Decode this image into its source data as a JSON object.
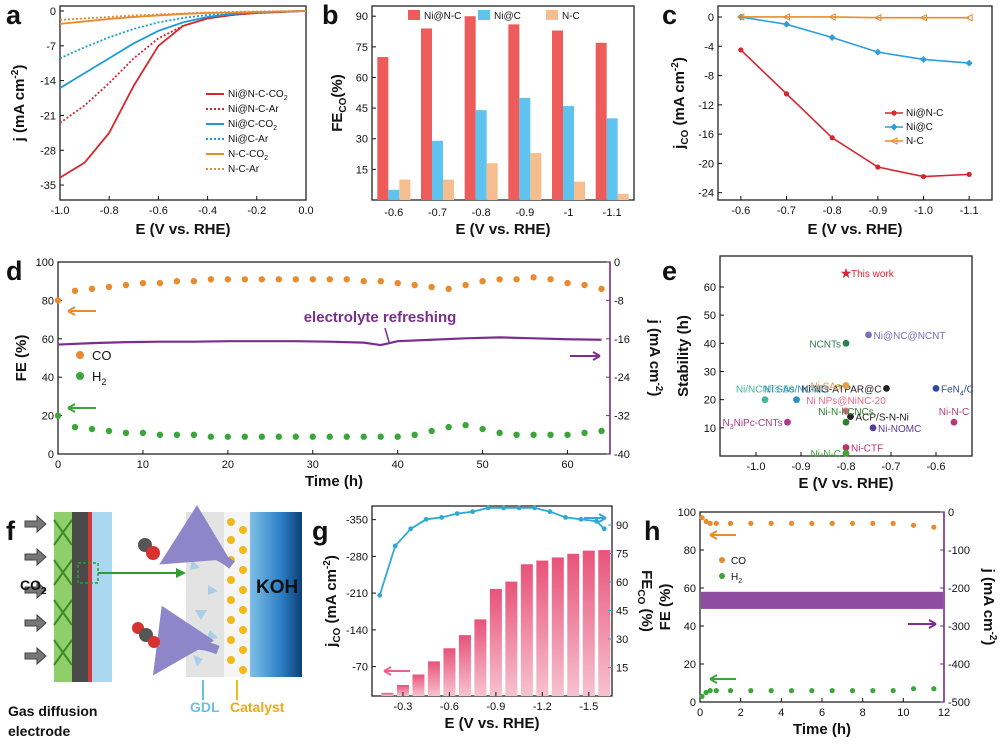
{
  "colors": {
    "red": "#d7262e",
    "blue": "#1e9bd7",
    "orange": "#e98b2a",
    "purple": "#7a2e8f",
    "pink": "#e8638a",
    "cyan": "#2fa8d3",
    "green": "#3aa63a",
    "darkorange": "#e88a2e"
  },
  "panels": {
    "a": "a",
    "b": "b",
    "c": "c",
    "d": "d",
    "e": "e",
    "f": "f",
    "g": "g",
    "h": "h"
  },
  "chart_data": [
    {
      "id": "a",
      "type": "line",
      "xlabel": "E (V vs. RHE)",
      "ylabel": "j (mA cm",
      "ylabel_sup": "-2",
      "ylabel_end": ")",
      "xlim": [
        -1.0,
        0.0
      ],
      "ylim": [
        -38,
        1
      ],
      "xticks": [
        "-1.0",
        "-0.8",
        "-0.6",
        "-0.4",
        "-0.2",
        "0.0"
      ],
      "xtick_values": [
        -1.0,
        -0.8,
        -0.6,
        -0.4,
        -0.2,
        0.0
      ],
      "yticks": [
        "0",
        "-7",
        "-14",
        "-21",
        "-28",
        "-35"
      ],
      "ytick_values": [
        0,
        -7,
        -14,
        -21,
        -28,
        -35
      ],
      "series": [
        {
          "name": "Ni@N-C-CO",
          "sub": "2",
          "color": "#d7262e",
          "dash": false,
          "x": [
            -1.0,
            -0.9,
            -0.8,
            -0.7,
            -0.6,
            -0.5,
            -0.4,
            -0.3,
            -0.2,
            -0.1,
            0.0
          ],
          "y": [
            -33.5,
            -30.5,
            -24.5,
            -15,
            -7,
            -3,
            -1.5,
            -0.8,
            -0.4,
            -0.2,
            0
          ]
        },
        {
          "name": "Ni@N-C-Ar",
          "color": "#d7262e",
          "dash": true,
          "x": [
            -1.0,
            -0.9,
            -0.8,
            -0.7,
            -0.6,
            -0.5,
            -0.4,
            -0.3,
            -0.2,
            -0.1,
            0.0
          ],
          "y": [
            -22.5,
            -19,
            -14.5,
            -9.5,
            -5.5,
            -3,
            -1.5,
            -0.8,
            -0.4,
            -0.2,
            0
          ]
        },
        {
          "name": "Ni@C-CO",
          "sub": "2",
          "color": "#1e9bd7",
          "dash": false,
          "x": [
            -1.0,
            -0.9,
            -0.8,
            -0.7,
            -0.6,
            -0.5,
            -0.4,
            -0.3,
            -0.2,
            -0.1,
            0.0
          ],
          "y": [
            -15.5,
            -12.5,
            -9.5,
            -6.5,
            -4,
            -2.3,
            -1.2,
            -0.6,
            -0.3,
            -0.1,
            0
          ]
        },
        {
          "name": "Ni@C-Ar",
          "color": "#1e9bd7",
          "dash": true,
          "x": [
            -1.0,
            -0.9,
            -0.8,
            -0.7,
            -0.6,
            -0.5,
            -0.4,
            -0.3,
            -0.2,
            -0.1,
            0.0
          ],
          "y": [
            -9.5,
            -7.3,
            -5.3,
            -3.6,
            -2.3,
            -1.4,
            -0.8,
            -0.4,
            -0.2,
            -0.1,
            0
          ]
        },
        {
          "name": "N-C-CO",
          "sub": "2",
          "color": "#e98b2a",
          "dash": false,
          "x": [
            -1.0,
            -0.9,
            -0.8,
            -0.7,
            -0.6,
            -0.5,
            -0.4,
            -0.3,
            -0.2,
            -0.1,
            0.0
          ],
          "y": [
            -2.6,
            -2.1,
            -1.6,
            -1.2,
            -0.9,
            -0.6,
            -0.4,
            -0.3,
            -0.2,
            -0.1,
            0
          ]
        },
        {
          "name": "N-C-Ar",
          "color": "#e98b2a",
          "dash": true,
          "x": [
            -1.0,
            -0.9,
            -0.8,
            -0.7,
            -0.6,
            -0.5,
            -0.4,
            -0.3,
            -0.2,
            -0.1,
            0.0
          ],
          "y": [
            -1.8,
            -1.5,
            -1.2,
            -0.9,
            -0.7,
            -0.5,
            -0.3,
            -0.2,
            -0.1,
            -0.05,
            0
          ]
        }
      ]
    },
    {
      "id": "b",
      "type": "bar",
      "xlabel": "E (V vs. RHE)",
      "ylabel": "FE",
      "ylabel_sub": "CO",
      "ylabel_end": "(%)",
      "categories": [
        "-0.6",
        "-0.7",
        "-0.8",
        "-0.9",
        "-1",
        "-1.1"
      ],
      "ylim": [
        0,
        95
      ],
      "yticks": [
        "15",
        "30",
        "45",
        "60",
        "75",
        "90"
      ],
      "ytick_values": [
        15,
        30,
        45,
        60,
        75,
        90
      ],
      "series": [
        {
          "name": "Ni@N-C",
          "color": "#ee5b5b",
          "values": [
            70,
            84,
            90,
            86,
            83,
            77
          ]
        },
        {
          "name": "Ni@C",
          "color": "#5fc3ef",
          "values": [
            5,
            29,
            44,
            50,
            46,
            40
          ]
        },
        {
          "name": "N-C",
          "color": "#f6be8f",
          "values": [
            10,
            10,
            18,
            23,
            9,
            3
          ]
        }
      ]
    },
    {
      "id": "c",
      "type": "line",
      "xlabel": "E (V vs. RHE)",
      "ylabel": "j",
      "ylabel_sub": "CO",
      "ylabel_end": " (mA cm",
      "ylabel_sup": "-2",
      "ylabel_end2": ")",
      "xlim": [
        -0.55,
        -1.15
      ],
      "ylim": [
        -25,
        1.5
      ],
      "xticks": [
        "-0.6",
        "-0.7",
        "-0.8",
        "-0.9",
        "-1.0",
        "-1.1"
      ],
      "xtick_values": [
        -0.6,
        -0.7,
        -0.8,
        -0.9,
        -1.0,
        -1.1
      ],
      "yticks": [
        "0",
        "-4",
        "-8",
        "-12",
        "-16",
        "-20",
        "-24"
      ],
      "ytick_values": [
        0,
        -4,
        -8,
        -12,
        -16,
        -20,
        -24
      ],
      "series": [
        {
          "name": "Ni@N-C",
          "color": "#d7262e",
          "marker": "star",
          "x": [
            -0.6,
            -0.7,
            -0.8,
            -0.9,
            -1.0,
            -1.1
          ],
          "y": [
            -4.5,
            -10.5,
            -16.5,
            -20.5,
            -21.8,
            -21.5
          ]
        },
        {
          "name": "Ni@C",
          "color": "#2e9fd8",
          "marker": "diamond",
          "x": [
            -0.6,
            -0.7,
            -0.8,
            -0.9,
            -1.0,
            -1.1
          ],
          "y": [
            0,
            -1,
            -2.8,
            -4.8,
            -5.8,
            -6.3
          ]
        },
        {
          "name": "N-C",
          "color": "#e98b2a",
          "marker": "tri",
          "x": [
            -0.6,
            -0.7,
            -0.8,
            -0.9,
            -1.0,
            -1.1
          ],
          "y": [
            0,
            0,
            0,
            -0.1,
            -0.1,
            -0.1
          ]
        }
      ]
    },
    {
      "id": "d",
      "type": "scatter",
      "xlabel": "Time (h)",
      "ylabel": "FE (%)",
      "y2label": "j (mA cm",
      "y2label_sup": "-2",
      "y2label_end": ")",
      "xlim": [
        0,
        65
      ],
      "ylim": [
        0,
        100
      ],
      "y2lim": [
        -40,
        0
      ],
      "xticks": [
        "0",
        "10",
        "20",
        "30",
        "40",
        "50",
        "60"
      ],
      "xtick_values": [
        0,
        10,
        20,
        30,
        40,
        50,
        60
      ],
      "yticks": [
        "0",
        "20",
        "40",
        "60",
        "80",
        "100"
      ],
      "ytick_values": [
        0,
        20,
        40,
        60,
        80,
        100
      ],
      "y2ticks": [
        "0",
        "-8",
        "-16",
        "-24",
        "-32",
        "-40"
      ],
      "y2tick_values": [
        0,
        -8,
        -16,
        -24,
        -32,
        -40
      ],
      "annotation": "electrolyte refreshing",
      "series": [
        {
          "name": "CO",
          "color": "#e88a2e",
          "x": [
            0,
            2,
            4,
            6,
            8,
            10,
            12,
            14,
            16,
            18,
            20,
            22,
            24,
            26,
            28,
            30,
            32,
            34,
            36,
            38,
            40,
            42,
            44,
            46,
            48,
            50,
            52,
            54,
            56,
            58,
            60,
            62,
            64
          ],
          "y": [
            80,
            85,
            86,
            87,
            88,
            89,
            89,
            90,
            90,
            91,
            91,
            91,
            91,
            91,
            91,
            91,
            91,
            91,
            90,
            90,
            89,
            88,
            87,
            86,
            88,
            90,
            91,
            91,
            92,
            91,
            89,
            88,
            86
          ]
        },
        {
          "name": "H",
          "sub": "2",
          "color": "#3aa63a",
          "x": [
            0,
            2,
            4,
            6,
            8,
            10,
            12,
            14,
            16,
            18,
            20,
            22,
            24,
            26,
            28,
            30,
            32,
            34,
            36,
            38,
            40,
            42,
            44,
            46,
            48,
            50,
            52,
            54,
            56,
            58,
            60,
            62,
            64
          ],
          "y": [
            20,
            14,
            13,
            12,
            11,
            11,
            10,
            10,
            10,
            9,
            9,
            9,
            9,
            9,
            9,
            9,
            9,
            9,
            9,
            9,
            9,
            10,
            12,
            14,
            15,
            13,
            11,
            10,
            10,
            10,
            10,
            11,
            12
          ]
        },
        {
          "name": "j",
          "color": "#7a2e8f",
          "axis": "y2",
          "x": [
            0,
            4,
            8,
            12,
            16,
            20,
            24,
            28,
            32,
            36,
            38,
            40,
            44,
            48,
            52,
            56,
            60,
            64
          ],
          "y": [
            -17.2,
            -16.9,
            -16.7,
            -16.6,
            -16.6,
            -16.5,
            -16.5,
            -16.5,
            -16.6,
            -16.8,
            -17.3,
            -16.5,
            -16.2,
            -15.9,
            -15.7,
            -15.9,
            -16.1,
            -16.2
          ]
        }
      ]
    },
    {
      "id": "e",
      "type": "scatter",
      "xlabel": "E (V vs. RHE)",
      "ylabel": "Stability (h)",
      "xlim": [
        -1.08,
        -0.52
      ],
      "ylim": [
        0,
        71
      ],
      "xticks": [
        "-1.0",
        "-0.9",
        "-0.8",
        "-0.7",
        "-0.6"
      ],
      "xtick_values": [
        -1.0,
        -0.9,
        -0.8,
        -0.7,
        -0.6
      ],
      "yticks": [
        "10",
        "20",
        "30",
        "40",
        "50",
        "60"
      ],
      "ytick_values": [
        10,
        20,
        30,
        40,
        50,
        60
      ],
      "points": [
        {
          "label": "This work",
          "x": -0.8,
          "y": 65,
          "color": "#d7262e",
          "star": true,
          "anchor": "start"
        },
        {
          "label": "Ni@NC@NCNT",
          "x": -0.75,
          "y": 43,
          "color": "#7a6fb8",
          "anchor": "start"
        },
        {
          "label": "NCNTs",
          "x": -0.8,
          "y": 40,
          "color": "#2f7f50",
          "anchor": "end"
        },
        {
          "label": "Ni-NG-ATPAR@C",
          "x": -0.71,
          "y": 24,
          "color": "#222222",
          "anchor": "end"
        },
        {
          "label": "Ni SAs",
          "x": -0.8,
          "y": 25,
          "color": "#e0a040",
          "anchor": "end"
        },
        {
          "label": "FeN",
          "sub": "4",
          "suffix": "/C",
          "x": -0.6,
          "y": 24,
          "color": "#2d4a9c",
          "anchor": "start"
        },
        {
          "label": "Ni/NCNTs-50",
          "x": -0.98,
          "y": 20,
          "color": "#46b59a",
          "anchor": "middle"
        },
        {
          "label": "Ni SAs/NCNTs",
          "x": -0.91,
          "y": 20,
          "color": "#2f8fc0",
          "anchor": "middle"
        },
        {
          "label": "Ni NPs@NiNC-20",
          "x": -0.8,
          "y": 16,
          "color": "#e86b8a",
          "anchor": "middle"
        },
        {
          "label": "ACP/S-N-Ni",
          "x": -0.79,
          "y": 14,
          "color": "#222222",
          "anchor": "start"
        },
        {
          "label": "Ni-N-C",
          "x": -0.56,
          "y": 12,
          "color": "#b03a7a",
          "anchor": "middle"
        },
        {
          "label": "N",
          "sub": "3",
          "suffix": "NiPc-CNTs",
          "x": -0.93,
          "y": 12,
          "color": "#b03a8a",
          "anchor": "end"
        },
        {
          "label": "Ni-NOMC",
          "x": -0.74,
          "y": 10,
          "color": "#5a3a9a",
          "anchor": "start"
        },
        {
          "label": "Ni-N-hCNCs",
          "x": -0.8,
          "y": 12,
          "color": "#2f7f30",
          "anchor": "middle"
        },
        {
          "label": "Ni-CTF",
          "x": -0.8,
          "y": 3,
          "color": "#c0306a",
          "anchor": "start"
        },
        {
          "label": "Ni-N-C",
          "x": -0.8,
          "y": 1,
          "color": "#3aa63a",
          "anchor": "end",
          "id": "ninc2"
        }
      ]
    },
    {
      "id": "g",
      "type": "bar",
      "xlabel": "E (V vs. RHE)",
      "ylabel": "j",
      "ylabel_sub": "CO",
      "ylabel_end": " (mA cm",
      "ylabel_sup": "-2",
      "ylabel_end2": ")",
      "y2label": "FE",
      "y2label_sub": "CO",
      "y2label_end": " (%)",
      "xlim": [
        -0.1,
        -1.65
      ],
      "ylim": [
        -14,
        -376
      ],
      "y2lim": [
        0,
        100
      ],
      "xticks": [
        "-0.3",
        "-0.6",
        "-0.9",
        "-1.2",
        "-1.5"
      ],
      "xtick_values": [
        -0.3,
        -0.6,
        -0.9,
        -1.2,
        -1.5
      ],
      "yticks": [
        "-70",
        "-140",
        "-210",
        "-280",
        "-350"
      ],
      "ytick_values": [
        -70,
        -140,
        -210,
        -280,
        -350
      ],
      "y2ticks": [
        "15",
        "30",
        "45",
        "60",
        "75",
        "90"
      ],
      "y2tick_values": [
        15,
        30,
        45,
        60,
        75,
        90
      ],
      "bars_x": [
        -0.2,
        -0.3,
        -0.4,
        -0.5,
        -0.6,
        -0.7,
        -0.8,
        -0.9,
        -1.0,
        -1.1,
        -1.2,
        -1.3,
        -1.4,
        -1.5,
        -1.6
      ],
      "bars_y": [
        -20,
        -35,
        -55,
        -80,
        -105,
        -130,
        -160,
        -218,
        -232,
        -265,
        -272,
        -278,
        -285,
        -291,
        -292
      ],
      "fe_x": [
        -0.15,
        -0.25,
        -0.35,
        -0.45,
        -0.55,
        -0.65,
        -0.75,
        -0.85,
        -0.95,
        -1.05,
        -1.15,
        -1.25,
        -1.35,
        -1.45,
        -1.55,
        -1.6
      ],
      "fe_y": [
        53,
        79,
        88,
        93,
        94,
        96,
        97,
        99,
        99,
        99,
        99,
        97,
        94,
        93,
        92,
        88
      ]
    },
    {
      "id": "h",
      "type": "scatter",
      "xlabel": "Time (h)",
      "ylabel": "FE (%)",
      "y2label": "j (mA cm",
      "y2label_sup": "-2",
      "y2label_end": ")",
      "xlim": [
        0,
        12
      ],
      "ylim": [
        0,
        100
      ],
      "y2lim": [
        -500,
        0
      ],
      "xticks": [
        "0",
        "2",
        "4",
        "6",
        "8",
        "10",
        "12"
      ],
      "xtick_values": [
        0,
        2,
        4,
        6,
        8,
        10,
        12
      ],
      "yticks": [
        "0",
        "20",
        "40",
        "60",
        "80",
        "100"
      ],
      "ytick_values": [
        0,
        20,
        40,
        60,
        80,
        100
      ],
      "y2ticks": [
        "0",
        "-100",
        "-200",
        "-300",
        "-400",
        "-500"
      ],
      "y2tick_values": [
        0,
        -100,
        -200,
        -300,
        -400,
        -500
      ],
      "series": [
        {
          "name": "CO",
          "color": "#e88a2e",
          "x": [
            0.1,
            0.3,
            0.5,
            0.8,
            1.5,
            2.5,
            3.5,
            4.5,
            5.5,
            6.5,
            7.5,
            8.5,
            9.5,
            10.5,
            11.5
          ],
          "y": [
            97,
            95,
            94,
            94,
            94,
            94,
            94,
            94,
            94,
            94,
            94,
            94,
            94,
            93,
            92
          ]
        },
        {
          "name": "H",
          "sub": "2",
          "color": "#3aa63a",
          "x": [
            0.1,
            0.3,
            0.5,
            0.8,
            1.5,
            2.5,
            3.5,
            4.5,
            5.5,
            6.5,
            7.5,
            8.5,
            9.5,
            10.5,
            11.5
          ],
          "y": [
            3,
            5,
            6,
            6,
            6,
            6,
            6,
            6,
            6,
            6,
            6,
            6,
            6,
            7,
            7
          ]
        },
        {
          "name": "j",
          "color": "#7a2e8f",
          "axis": "y2",
          "band": [
            -255,
            -210
          ]
        }
      ]
    }
  ],
  "diagram_f": {
    "co2": "CO",
    "co2_sub": "2",
    "koh": "KOH",
    "gdl": "GDL",
    "catalyst": "Catalyst",
    "gde1": "Gas diffusion",
    "gde2": "electrode"
  }
}
